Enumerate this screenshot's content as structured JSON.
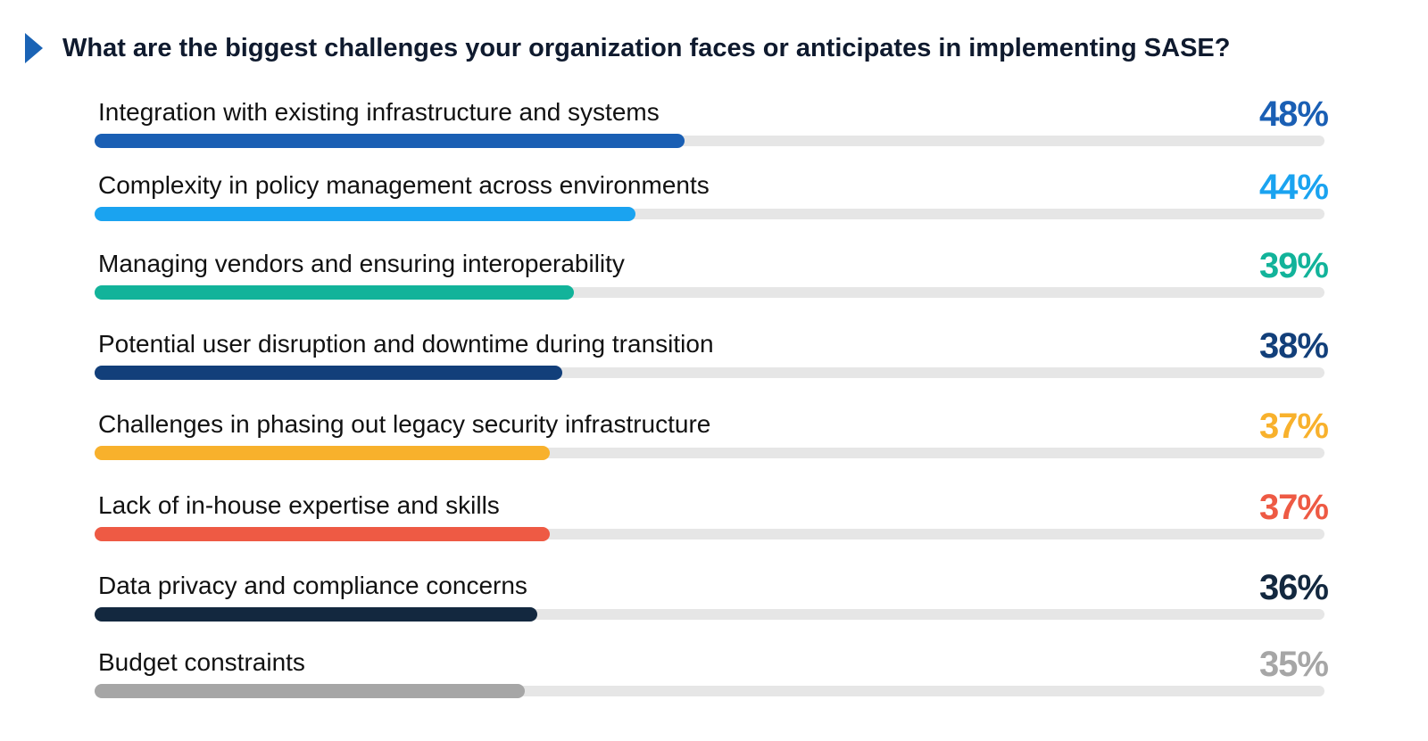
{
  "chart_data": {
    "type": "bar",
    "orientation": "horizontal",
    "title": "What are the biggest challenges your organization faces or anticipates in implementing SASE?",
    "categories": [
      "Integration with existing infrastructure and systems",
      "Complexity in policy management across environments",
      "Managing vendors and ensuring interoperability",
      "Potential user disruption and downtime during transition",
      "Challenges in phasing out legacy security infrastructure",
      "Lack of in-house expertise and skills",
      "Data privacy and compliance concerns",
      "Budget constraints"
    ],
    "values": [
      48,
      44,
      39,
      38,
      37,
      37,
      36,
      35
    ],
    "value_labels": [
      "48%",
      "44%",
      "39%",
      "38%",
      "37%",
      "37%",
      "36%",
      "35%"
    ],
    "colors": [
      "#1a5fb4",
      "#1aa3f0",
      "#12b39a",
      "#123f7a",
      "#f8b12c",
      "#ee5a44",
      "#13283f",
      "#a6a6a6"
    ],
    "xlim": [
      0,
      100
    ],
    "grid": false,
    "legend": "none"
  },
  "colors": {
    "title_marker": "#1a63b5",
    "track": "#e6e6e6",
    "title_text": "#0f1a2e"
  },
  "icons": {
    "title_marker": "triangle-marker-icon"
  }
}
